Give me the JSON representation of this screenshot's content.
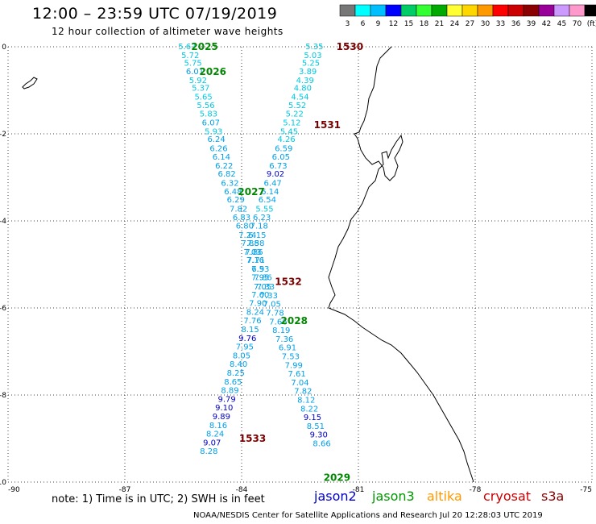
{
  "title": "12:00 – 23:59 UTC 07/19/2019",
  "subtitle": "12 hour collection of altimeter wave heights",
  "note": "note: 1) Time is in UTC; 2) SWH is in feet",
  "credit": "NOAA/NESDIS Center for Satellite Applications and Research   Jul 20 12:28:03 UTC 2019",
  "satellites": [
    {
      "label": "jason2",
      "color": "#0000cc"
    },
    {
      "label": "jason3",
      "color": "#009900"
    },
    {
      "label": "altika",
      "color": "#ff9900"
    },
    {
      "label": "cryosat",
      "color": "#cc0000"
    },
    {
      "label": "s3a",
      "color": "#8b0000"
    }
  ],
  "chart_data": {
    "type": "scatter",
    "xlim": [
      -90,
      -75
    ],
    "ylim": [
      -10,
      0
    ],
    "xticks": [
      -90,
      -87,
      -84,
      -81,
      -78,
      -75
    ],
    "yticks": [
      0,
      -2,
      -4,
      -6,
      -8,
      -10
    ],
    "grid": true,
    "colorbar": {
      "ticks": [
        "3",
        "6",
        "9",
        "12",
        "15",
        "18",
        "21",
        "24",
        "27",
        "30",
        "33",
        "36",
        "39",
        "42",
        "45",
        "70",
        "(ft)"
      ],
      "colors": [
        "#777777",
        "#00ffff",
        "#00bfff",
        "#0000ff",
        "#00cc66",
        "#33ff33",
        "#00aa00",
        "#ffff33",
        "#ffd700",
        "#ff9900",
        "#ff0000",
        "#cc0000",
        "#8b0000",
        "#990099",
        "#cc99ff",
        "#ff99cc",
        "#000000"
      ]
    },
    "series": [
      {
        "points": [
          {
            "x": -85.4,
            "y": 0.0,
            "v": "5.67"
          },
          {
            "x": -85.32,
            "y": -0.2,
            "v": "5.72"
          },
          {
            "x": -85.25,
            "y": -0.38,
            "v": "5.75"
          },
          {
            "x": -85.2,
            "y": -0.57,
            "v": "6.01"
          },
          {
            "x": -85.12,
            "y": -0.78,
            "v": "5.92"
          },
          {
            "x": -85.05,
            "y": -0.95,
            "v": "5.37"
          },
          {
            "x": -84.98,
            "y": -1.16,
            "v": "5.65"
          },
          {
            "x": -84.92,
            "y": -1.35,
            "v": "5.56"
          },
          {
            "x": -84.85,
            "y": -1.55,
            "v": "5.83"
          },
          {
            "x": -84.79,
            "y": -1.75,
            "v": "6.07"
          },
          {
            "x": -84.72,
            "y": -1.95,
            "v": "5.93"
          },
          {
            "x": -84.65,
            "y": -2.13,
            "v": "6.24"
          },
          {
            "x": -84.59,
            "y": -2.34,
            "v": "6.26"
          },
          {
            "x": -84.52,
            "y": -2.54,
            "v": "6.14"
          },
          {
            "x": -84.45,
            "y": -2.74,
            "v": "6.22"
          },
          {
            "x": -84.38,
            "y": -2.93,
            "v": "6.82"
          },
          {
            "x": -84.3,
            "y": -3.14,
            "v": "6.32"
          },
          {
            "x": -84.22,
            "y": -3.33,
            "v": "6.48"
          },
          {
            "x": -84.15,
            "y": -3.52,
            "v": "6.29"
          },
          {
            "x": -84.08,
            "y": -3.73,
            "v": "7.82"
          },
          {
            "x": -84.0,
            "y": -3.93,
            "v": "6.83"
          },
          {
            "x": -83.92,
            "y": -4.12,
            "v": "6.80"
          },
          {
            "x": -83.85,
            "y": -4.33,
            "v": "7.24"
          },
          {
            "x": -83.78,
            "y": -4.52,
            "v": "7.88"
          },
          {
            "x": -83.72,
            "y": -4.72,
            "v": "7.03"
          },
          {
            "x": -83.65,
            "y": -4.91,
            "v": "7.16"
          },
          {
            "x": -83.58,
            "y": -5.11,
            "v": "6.9"
          },
          {
            "x": -83.52,
            "y": -5.31,
            "v": "7.95"
          },
          {
            "x": -83.46,
            "y": -5.52,
            "v": "7.05"
          },
          {
            "x": -83.52,
            "y": -5.7,
            "v": "7.60"
          },
          {
            "x": -83.58,
            "y": -5.9,
            "v": "7.90"
          },
          {
            "x": -83.65,
            "y": -6.1,
            "v": "8.24"
          },
          {
            "x": -83.72,
            "y": -6.3,
            "v": "7.76"
          },
          {
            "x": -83.78,
            "y": -6.5,
            "v": "8.15"
          },
          {
            "x": -83.85,
            "y": -6.7,
            "v": "9.76"
          },
          {
            "x": -83.92,
            "y": -6.9,
            "v": "7.95"
          },
          {
            "x": -84.0,
            "y": -7.1,
            "v": "8.05"
          },
          {
            "x": -84.08,
            "y": -7.3,
            "v": "8.40"
          },
          {
            "x": -84.15,
            "y": -7.5,
            "v": "8.25"
          },
          {
            "x": -84.22,
            "y": -7.7,
            "v": "8.65"
          },
          {
            "x": -84.3,
            "y": -7.9,
            "v": "8.89"
          },
          {
            "x": -84.38,
            "y": -8.1,
            "v": "9.79"
          },
          {
            "x": -84.45,
            "y": -8.3,
            "v": "9.10"
          },
          {
            "x": -84.52,
            "y": -8.5,
            "v": "9.89"
          },
          {
            "x": -84.6,
            "y": -8.7,
            "v": "8.16"
          },
          {
            "x": -84.68,
            "y": -8.9,
            "v": "8.24"
          },
          {
            "x": -84.76,
            "y": -9.1,
            "v": "9.07"
          },
          {
            "x": -84.84,
            "y": -9.3,
            "v": "8.28"
          }
        ]
      },
      {
        "points": [
          {
            "x": -82.13,
            "y": 0.0,
            "v": "5.35"
          },
          {
            "x": -82.17,
            "y": -0.2,
            "v": "5.03"
          },
          {
            "x": -82.22,
            "y": -0.38,
            "v": "5.25"
          },
          {
            "x": -82.3,
            "y": -0.57,
            "v": "3.89"
          },
          {
            "x": -82.37,
            "y": -0.78,
            "v": "4.39"
          },
          {
            "x": -82.43,
            "y": -0.95,
            "v": "4.80"
          },
          {
            "x": -82.5,
            "y": -1.16,
            "v": "4.54"
          },
          {
            "x": -82.57,
            "y": -1.35,
            "v": "5.52"
          },
          {
            "x": -82.64,
            "y": -1.55,
            "v": "5.22"
          },
          {
            "x": -82.71,
            "y": -1.75,
            "v": "5.12"
          },
          {
            "x": -82.78,
            "y": -1.95,
            "v": "5.45"
          },
          {
            "x": -82.85,
            "y": -2.13,
            "v": "4.26"
          },
          {
            "x": -82.92,
            "y": -2.34,
            "v": "6.59"
          },
          {
            "x": -82.99,
            "y": -2.54,
            "v": "6.05"
          },
          {
            "x": -83.06,
            "y": -2.74,
            "v": "6.73"
          },
          {
            "x": -83.13,
            "y": -2.93,
            "v": "9.02"
          },
          {
            "x": -83.2,
            "y": -3.14,
            "v": "6.47"
          },
          {
            "x": -83.27,
            "y": -3.33,
            "v": "6.14"
          },
          {
            "x": -83.34,
            "y": -3.52,
            "v": "6.54"
          },
          {
            "x": -83.41,
            "y": -3.73,
            "v": "5.55"
          },
          {
            "x": -83.48,
            "y": -3.93,
            "v": "6.23"
          },
          {
            "x": -83.55,
            "y": -4.12,
            "v": "7.18"
          },
          {
            "x": -83.6,
            "y": -4.33,
            "v": "6.15"
          },
          {
            "x": -83.64,
            "y": -4.52,
            "v": "7.58"
          },
          {
            "x": -83.68,
            "y": -4.72,
            "v": "7.86"
          },
          {
            "x": -83.63,
            "y": -4.91,
            "v": "7.71"
          },
          {
            "x": -83.52,
            "y": -5.11,
            "v": "7.53"
          },
          {
            "x": -83.45,
            "y": -5.31,
            "v": "7.86"
          },
          {
            "x": -83.38,
            "y": -5.52,
            "v": "7.33"
          },
          {
            "x": -83.3,
            "y": -5.72,
            "v": "7.33"
          },
          {
            "x": -83.22,
            "y": -5.92,
            "v": "7.05"
          },
          {
            "x": -83.14,
            "y": -6.12,
            "v": "7.78"
          },
          {
            "x": -83.06,
            "y": -6.32,
            "v": "7.66"
          },
          {
            "x": -82.98,
            "y": -6.52,
            "v": "8.19"
          },
          {
            "x": -82.9,
            "y": -6.72,
            "v": "7.36"
          },
          {
            "x": -82.82,
            "y": -6.92,
            "v": "6.91"
          },
          {
            "x": -82.74,
            "y": -7.12,
            "v": "7.53"
          },
          {
            "x": -82.66,
            "y": -7.32,
            "v": "7.99"
          },
          {
            "x": -82.58,
            "y": -7.52,
            "v": "7.61"
          },
          {
            "x": -82.5,
            "y": -7.72,
            "v": "7.04"
          },
          {
            "x": -82.42,
            "y": -7.92,
            "v": "7.82"
          },
          {
            "x": -82.34,
            "y": -8.12,
            "v": "8.12"
          },
          {
            "x": -82.26,
            "y": -8.32,
            "v": "8.22"
          },
          {
            "x": -82.18,
            "y": -8.52,
            "v": "9.15"
          },
          {
            "x": -82.1,
            "y": -8.72,
            "v": "8.51"
          },
          {
            "x": -82.02,
            "y": -8.92,
            "v": "9.30"
          },
          {
            "x": -81.94,
            "y": -9.12,
            "v": "8.66"
          }
        ]
      }
    ],
    "annotations": [
      {
        "text": "2025",
        "x": -84.95,
        "y": 0.0,
        "color": "#008800"
      },
      {
        "text": "2026",
        "x": -84.74,
        "y": -0.57,
        "color": "#008800"
      },
      {
        "text": "2027",
        "x": -83.75,
        "y": -3.33,
        "color": "#008800"
      },
      {
        "text": "2028",
        "x": -82.65,
        "y": -6.3,
        "color": "#008800"
      },
      {
        "text": "2029",
        "x": -81.55,
        "y": -9.9,
        "color": "#008800"
      },
      {
        "text": "1530",
        "x": -81.22,
        "y": 0.0,
        "color": "#7a0000"
      },
      {
        "text": "1531",
        "x": -81.8,
        "y": -1.8,
        "color": "#7a0000"
      },
      {
        "text": "1532",
        "x": -82.8,
        "y": -5.4,
        "color": "#7a0000"
      },
      {
        "text": "1533",
        "x": -83.72,
        "y": -9.0,
        "color": "#7a0000"
      }
    ]
  }
}
